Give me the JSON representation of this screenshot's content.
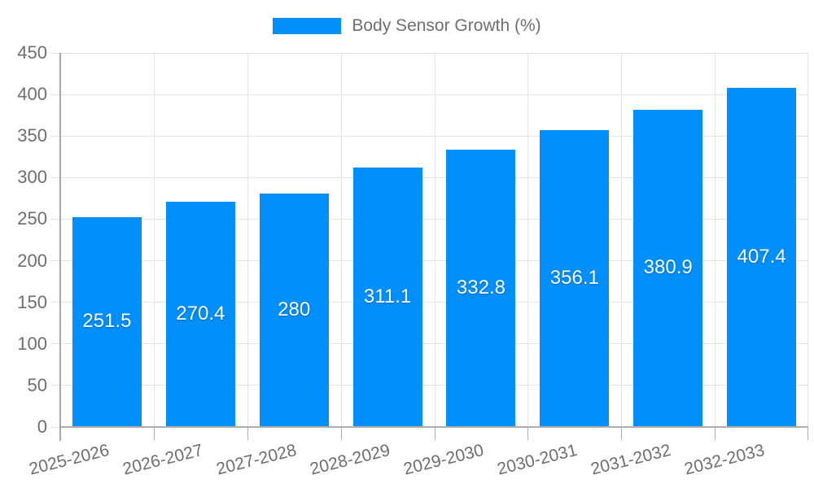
{
  "legend": {
    "label": "Body Sensor Growth (%)"
  },
  "chart_data": {
    "type": "bar",
    "title": "",
    "categories": [
      "2025-2026",
      "2026-2027",
      "2027-2028",
      "2028-2029",
      "2029-2030",
      "2030-2031",
      "2031-2032",
      "2032-2033"
    ],
    "series": [
      {
        "name": "Body Sensor Growth (%)",
        "values": [
          251.5,
          270.4,
          280,
          311.1,
          332.8,
          356.1,
          380.9,
          407.4
        ],
        "labels": [
          "251.5",
          "270.4",
          "280",
          "311.1",
          "332.8",
          "356.1",
          "380.9",
          "407.4"
        ]
      }
    ],
    "xlabel": "",
    "ylabel": "",
    "y_axis": {
      "min": 0,
      "max": 450,
      "tick_step": 50,
      "ticks": [
        0,
        50,
        100,
        150,
        200,
        250,
        300,
        350,
        400,
        450
      ]
    },
    "grid": {
      "horizontal": true,
      "vertical": true
    },
    "legend_position": "top",
    "value_labels_position": "center",
    "x_label_rotation_deg": -14
  },
  "colors": {
    "bar": "#008FFB",
    "grid": "#E4E4E4",
    "axis_line": "#A8A8A8",
    "x_axis_line": "#ADADAD",
    "tick_label": "#6E6E6E",
    "value_label": "#FFFFFF",
    "legend_label": "#6E6E6E"
  }
}
